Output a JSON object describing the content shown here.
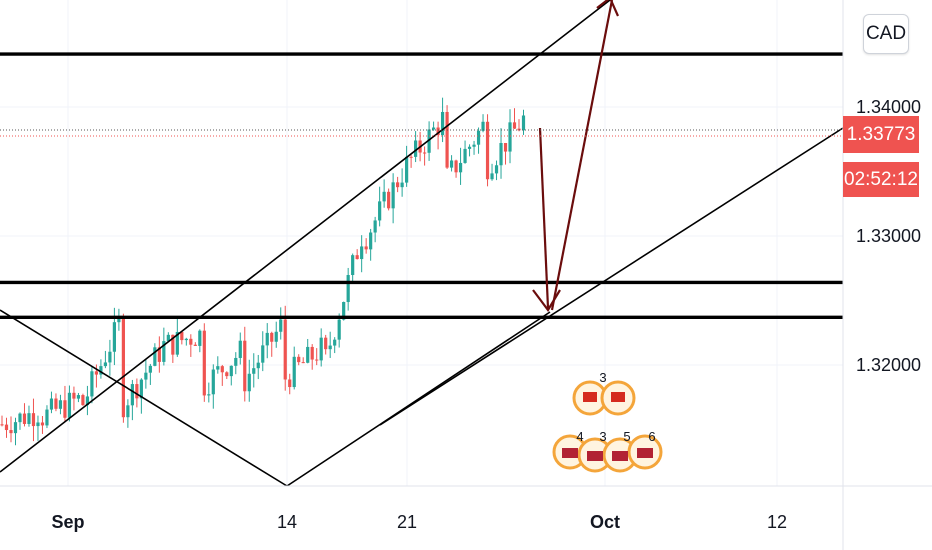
{
  "currency_label": "CAD",
  "price_tag": {
    "value": "1.33773",
    "countdown": "02:52:12"
  },
  "colors": {
    "up": "#26a69a",
    "down": "#ef5350",
    "background": "#ffffff",
    "drawing": "#000000",
    "arrow": "#6b0d0d",
    "tag": "#ef5350"
  },
  "chart_data": {
    "type": "candlestick",
    "x_ticks": [
      "Sep",
      "14",
      "21",
      "Oct",
      "12"
    ],
    "y_ticks": [
      "1.34000",
      "1.33000",
      "1.32000"
    ],
    "last_price": 1.33773,
    "horizontal_levels": [
      1.3441,
      1.3264,
      1.3237
    ],
    "candle_ranges": [
      {
        "from": 1.3154,
        "to": 1.3165
      },
      {
        "from": 1.316,
        "to": 1.3175
      },
      {
        "from": 1.317,
        "to": 1.3238
      },
      {
        "from": 1.317,
        "to": 1.3215
      },
      {
        "from": 1.3215,
        "to": 1.3225
      },
      {
        "from": 1.3185,
        "to": 1.3213
      },
      {
        "from": 1.3188,
        "to": 1.3235
      },
      {
        "from": 1.319,
        "to": 1.3215
      },
      {
        "from": 1.3205,
        "to": 1.3312
      },
      {
        "from": 1.33,
        "to": 1.3355
      },
      {
        "from": 1.3355,
        "to": 1.3395
      },
      {
        "from": 1.3345,
        "to": 1.339
      },
      {
        "from": 1.3355,
        "to": 1.3395
      }
    ],
    "economic_events": [
      {
        "flag": "CA",
        "count": "3"
      },
      {
        "flag": "US",
        "counts": [
          "4",
          "3",
          "5",
          "6"
        ]
      }
    ]
  }
}
